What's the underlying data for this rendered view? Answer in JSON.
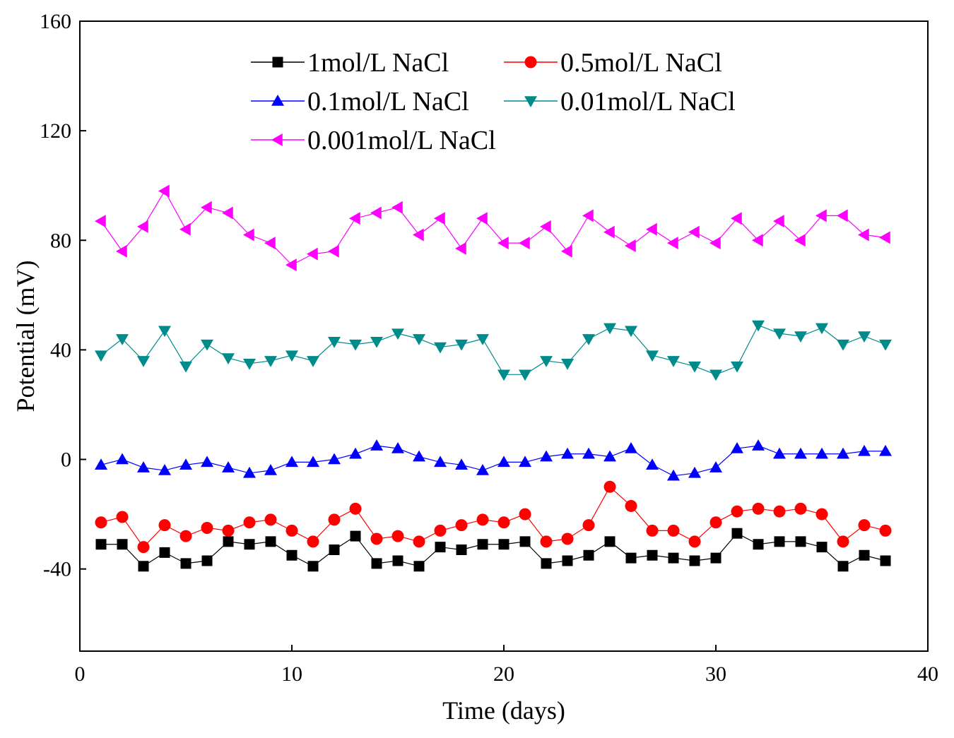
{
  "chart_data": {
    "type": "line",
    "title": "",
    "xlabel": "Time (days)",
    "ylabel": "Potential (mV)",
    "xlim": [
      0,
      40
    ],
    "ylim": [
      -70,
      160
    ],
    "xticks": [
      0,
      10,
      20,
      30,
      40
    ],
    "yticks": [
      -40,
      0,
      40,
      80,
      120,
      160
    ],
    "grid": false,
    "legend_position": "top-center",
    "x": [
      1,
      2,
      3,
      4,
      5,
      6,
      7,
      8,
      9,
      10,
      11,
      12,
      13,
      14,
      15,
      16,
      17,
      18,
      19,
      20,
      21,
      22,
      23,
      24,
      25,
      26,
      27,
      28,
      29,
      30,
      31,
      32,
      33,
      34,
      35,
      36,
      37,
      38
    ],
    "series": [
      {
        "name": "1mol/L NaCl",
        "color": "#000000",
        "marker": "square",
        "values": [
          -31,
          -31,
          -39,
          -34,
          -38,
          -37,
          -30,
          -31,
          -30,
          -35,
          -39,
          -33,
          -28,
          -38,
          -37,
          -39,
          -32,
          -33,
          -31,
          -31,
          -30,
          -38,
          -37,
          -35,
          -30,
          -36,
          -35,
          -36,
          -37,
          -36,
          -27,
          -31,
          -30,
          -30,
          -32,
          -39,
          -35,
          -37
        ]
      },
      {
        "name": "0.5mol/L NaCl",
        "color": "#ff0000",
        "marker": "circle",
        "values": [
          -23,
          -21,
          -32,
          -24,
          -28,
          -25,
          -26,
          -23,
          -22,
          -26,
          -30,
          -22,
          -18,
          -29,
          -28,
          -30,
          -26,
          -24,
          -22,
          -23,
          -20,
          -30,
          -29,
          -24,
          -10,
          -17,
          -26,
          -26,
          -30,
          -23,
          -19,
          -18,
          -19,
          -18,
          -20,
          -30,
          -24,
          -26
        ]
      },
      {
        "name": "0.1mol/L NaCl",
        "color": "#0000ff",
        "marker": "triangle-up",
        "values": [
          -2,
          0,
          -3,
          -4,
          -2,
          -1,
          -3,
          -5,
          -4,
          -1,
          -1,
          0,
          2,
          5,
          4,
          1,
          -1,
          -2,
          -4,
          -1,
          -1,
          1,
          2,
          2,
          1,
          4,
          -2,
          -6,
          -5,
          -3,
          4,
          5,
          2,
          2,
          2,
          2,
          3,
          3
        ]
      },
      {
        "name": "0.01mol/L NaCl",
        "color": "#008b8b",
        "marker": "triangle-down",
        "values": [
          38,
          44,
          36,
          47,
          34,
          42,
          37,
          35,
          36,
          38,
          36,
          43,
          42,
          43,
          46,
          44,
          41,
          42,
          44,
          31,
          31,
          36,
          35,
          44,
          48,
          47,
          38,
          36,
          34,
          31,
          34,
          49,
          46,
          45,
          48,
          42,
          45,
          42
        ]
      },
      {
        "name": "0.001mol/L NaCl",
        "color": "#ff00ff",
        "marker": "triangle-left",
        "values": [
          87,
          76,
          85,
          98,
          84,
          92,
          90,
          82,
          79,
          71,
          75,
          76,
          88,
          90,
          92,
          82,
          88,
          77,
          88,
          79,
          79,
          85,
          76,
          89,
          83,
          78,
          84,
          79,
          83,
          79,
          88,
          80,
          87,
          80,
          89,
          89,
          82,
          81
        ]
      }
    ]
  }
}
